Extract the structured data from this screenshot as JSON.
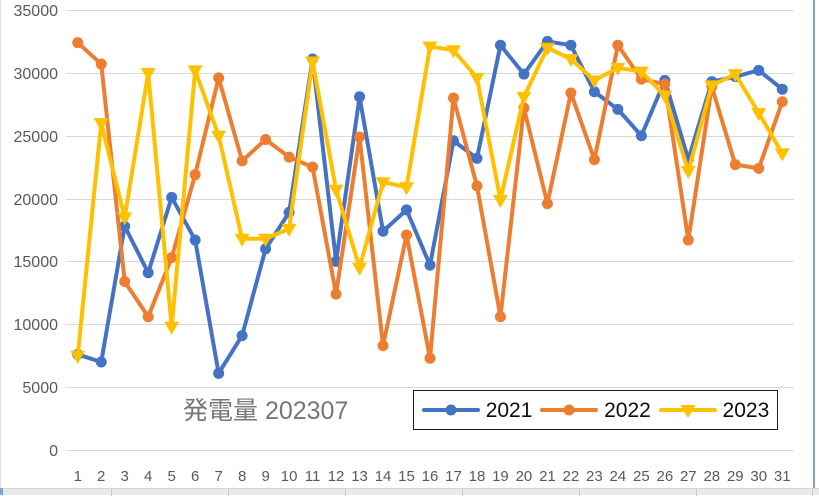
{
  "title": "発電量 202307",
  "colors": {
    "series_2021": "#4472C4",
    "series_2022": "#ED7D31",
    "series_2023": "#FFC000",
    "gridline": "#D9D9D9",
    "axis_label": "#595959",
    "title_text": "#767676",
    "legend_border": "#1F1F1F",
    "background": "#FFFFFF",
    "sheet_strip": "#E9E9E9",
    "pane_edge_blue": "#7FA3D8"
  },
  "chart_data": {
    "type": "line",
    "title": "発電量 202307",
    "categories": [
      "1",
      "2",
      "3",
      "4",
      "5",
      "6",
      "7",
      "8",
      "9",
      "10",
      "11",
      "12",
      "13",
      "14",
      "15",
      "16",
      "17",
      "18",
      "19",
      "20",
      "21",
      "22",
      "23",
      "24",
      "25",
      "26",
      "27",
      "28",
      "29",
      "30",
      "31"
    ],
    "series": [
      {
        "name": "2021",
        "color": "#4472C4",
        "marker": "circle",
        "values": [
          7600,
          7000,
          17800,
          14100,
          20100,
          16700,
          6100,
          9100,
          16000,
          18900,
          31100,
          15000,
          28100,
          17400,
          19100,
          14700,
          24600,
          23200,
          32200,
          29900,
          32500,
          32200,
          28500,
          27100,
          25000,
          29400,
          23100,
          29300,
          29700,
          30200,
          28700
        ]
      },
      {
        "name": "2022",
        "color": "#ED7D31",
        "marker": "circle",
        "values": [
          32400,
          30700,
          13400,
          10600,
          15300,
          21900,
          29600,
          23000,
          24700,
          23300,
          22500,
          12400,
          24900,
          8300,
          17100,
          7300,
          28000,
          21000,
          10600,
          27200,
          19600,
          28400,
          23100,
          32200,
          29500,
          29100,
          16700,
          28900,
          22700,
          22400,
          27700
        ]
      },
      {
        "name": "2023",
        "color": "#FFC000",
        "marker": "triangle-down",
        "values": [
          7500,
          26000,
          18500,
          30000,
          9800,
          30200,
          25000,
          16800,
          16800,
          17600,
          30900,
          20700,
          14500,
          21300,
          20900,
          32100,
          31800,
          29600,
          19900,
          28100,
          32000,
          31100,
          29400,
          30400,
          30100,
          28200,
          22200,
          29000,
          29900,
          26800,
          23600
        ]
      }
    ],
    "ylim": [
      0,
      35000
    ],
    "ytick_step": 5000,
    "ytick_labels": [
      "0",
      "5000",
      "10000",
      "15000",
      "20000",
      "25000",
      "30000",
      "35000"
    ],
    "grid": "horizontal",
    "legend_position": "inside-bottom-right",
    "legend_labels": [
      "2021",
      "2022",
      "2023"
    ]
  }
}
